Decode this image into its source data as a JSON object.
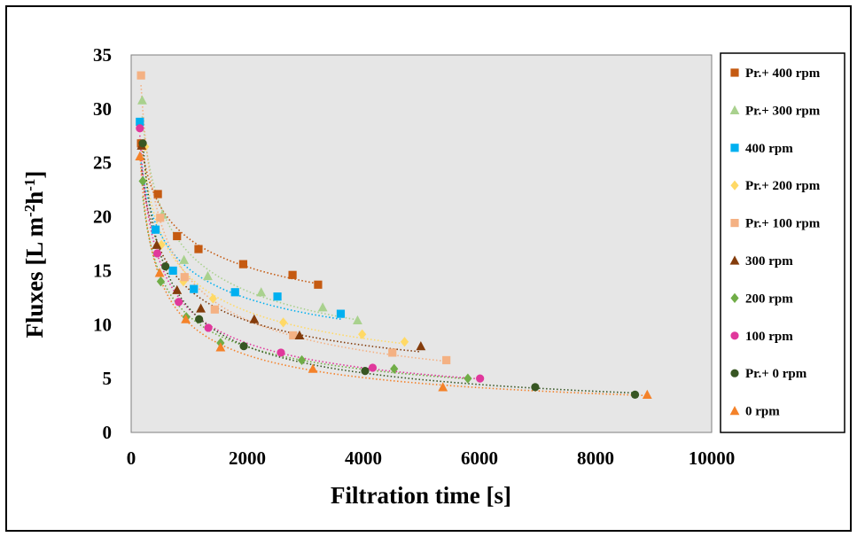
{
  "chart_data": {
    "type": "scatter",
    "title": "",
    "xlabel": "Filtration time [s]",
    "ylabel": "Fluxes [L m-2h-1]",
    "ylabel_parts": {
      "base": "Fluxes [L m",
      "sup1": "-2",
      "mid": "h",
      "sup2": "-1",
      "end": "]"
    },
    "xlim": [
      0,
      10000
    ],
    "ylim": [
      0,
      35
    ],
    "xticks": [
      "0",
      "2000",
      "4000",
      "6000",
      "8000",
      "10000"
    ],
    "yticks": [
      "0",
      "5",
      "10",
      "15",
      "20",
      "25",
      "30",
      "35"
    ],
    "xtick_values": [
      0,
      2000,
      4000,
      6000,
      8000,
      10000
    ],
    "ytick_values": [
      0,
      5,
      10,
      15,
      20,
      25,
      30,
      35
    ],
    "plot_background": "#e6e6e6",
    "legend_position": "right",
    "trendlines": "dotted",
    "series": [
      {
        "name": "Pr.+ 400 rpm",
        "marker": "square",
        "color": "#c55a11",
        "x": [
          170,
          460,
          790,
          1160,
          1930,
          2780,
          3220
        ],
        "y": [
          26.8,
          22.1,
          18.2,
          17.0,
          15.6,
          14.6,
          13.7
        ]
      },
      {
        "name": "Pr.+ 300 rpm",
        "marker": "triangle",
        "color": "#a9d18e",
        "x": [
          190,
          540,
          910,
          1320,
          2240,
          3300,
          3900
        ],
        "y": [
          30.8,
          20.2,
          16.0,
          14.5,
          13.0,
          11.6,
          10.4
        ]
      },
      {
        "name": "400 rpm",
        "marker": "square",
        "color": "#00b0f0",
        "x": [
          150,
          420,
          720,
          1080,
          1790,
          2520,
          3610
        ],
        "y": [
          28.8,
          18.8,
          15.0,
          13.3,
          13.0,
          12.6,
          11.0
        ]
      },
      {
        "name": "Pr.+ 200 rpm",
        "marker": "diamond",
        "color": "#ffd966",
        "x": [
          240,
          520,
          900,
          1410,
          2620,
          3980,
          4710
        ],
        "y": [
          26.5,
          17.4,
          14.0,
          12.4,
          10.2,
          9.1,
          8.4
        ]
      },
      {
        "name": "Pr.+ 100 rpm",
        "marker": "square",
        "color": "#f4b183",
        "x": [
          170,
          500,
          920,
          1440,
          2790,
          4500,
          5430
        ],
        "y": [
          33.1,
          19.9,
          14.4,
          11.4,
          9.0,
          7.4,
          6.7
        ]
      },
      {
        "name": "300 rpm",
        "marker": "triangle",
        "color": "#843c0c",
        "x": [
          180,
          440,
          790,
          1200,
          2120,
          2900,
          4990
        ],
        "y": [
          26.6,
          17.4,
          13.2,
          11.5,
          10.5,
          9.0,
          8.0
        ]
      },
      {
        "name": "200 rpm",
        "marker": "diamond",
        "color": "#70ad47",
        "x": [
          200,
          510,
          950,
          1540,
          2940,
          4530,
          5800
        ],
        "y": [
          23.3,
          14.0,
          10.7,
          8.3,
          6.7,
          5.9,
          5.0
        ]
      },
      {
        "name": "100 rpm",
        "marker": "circle",
        "color": "#e0389c",
        "x": [
          150,
          450,
          820,
          1330,
          2580,
          4160,
          6010
        ],
        "y": [
          28.2,
          16.6,
          12.1,
          9.7,
          7.4,
          6.0,
          5.0
        ]
      },
      {
        "name": "Pr.+ 0 rpm",
        "marker": "circle",
        "color": "#375623",
        "x": [
          200,
          590,
          1170,
          1940,
          4030,
          6960,
          8680
        ],
        "y": [
          26.8,
          15.4,
          10.5,
          8.0,
          5.7,
          4.2,
          3.5
        ]
      },
      {
        "name": "0 rpm",
        "marker": "triangle",
        "color": "#f4822a",
        "x": [
          150,
          490,
          940,
          1540,
          3130,
          5370,
          8890
        ],
        "y": [
          25.6,
          14.8,
          10.5,
          7.9,
          5.9,
          4.2,
          3.5
        ]
      }
    ]
  }
}
